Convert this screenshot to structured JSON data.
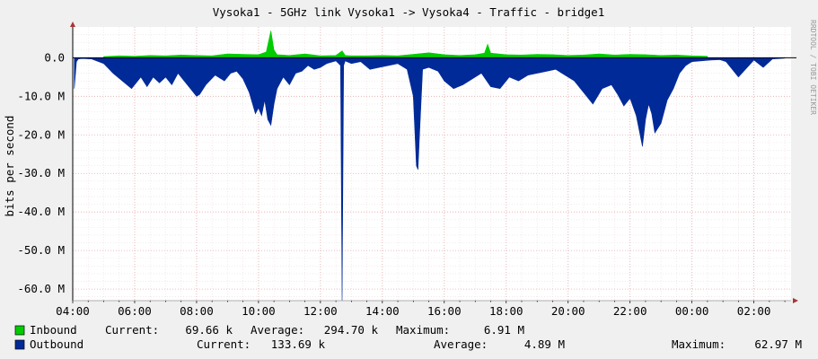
{
  "chart_data": {
    "type": "area",
    "title": "Vysoka1 - 5GHz link Vysoka1 -> Vysoka4 - Traffic - bridge1",
    "ylabel": "bits per second",
    "watermark": "RRDTOOL / TOBI OETIKER",
    "x_ticks": [
      "04:00",
      "06:00",
      "08:00",
      "10:00",
      "12:00",
      "14:00",
      "16:00",
      "18:00",
      "20:00",
      "22:00",
      "00:00",
      "02:00"
    ],
    "y_ticks": [
      "0.0",
      "-10.0 M",
      "-20.0 M",
      "-30.0 M",
      "-40.0 M",
      "-50.0 M",
      "-60.0 M"
    ],
    "ylim": [
      -63000000,
      8000000
    ],
    "xlim_hours": [
      4,
      27.2
    ],
    "grid": true,
    "series": [
      {
        "name": "Inbound",
        "color": "#00cc00",
        "x": [
          5.0,
          5.5,
          6.0,
          6.5,
          7.0,
          7.5,
          8.0,
          8.5,
          9.0,
          9.5,
          10.0,
          10.25,
          10.4,
          10.5,
          10.6,
          11.0,
          11.5,
          12.0,
          12.5,
          12.7,
          12.8,
          13.0,
          13.5,
          14.0,
          14.5,
          15.0,
          15.5,
          16.0,
          16.5,
          17.0,
          17.3,
          17.4,
          17.5,
          18.0,
          18.5,
          19.0,
          19.5,
          20.0,
          20.5,
          21.0,
          21.5,
          22.0,
          22.5,
          23.0,
          23.5,
          24.0,
          24.5
        ],
        "values": [
          300000,
          500000,
          400000,
          600000,
          500000,
          700000,
          600000,
          500000,
          1000000,
          900000,
          800000,
          1500000,
          7000000,
          2000000,
          800000,
          600000,
          1000000,
          500000,
          600000,
          1800000,
          600000,
          500000,
          500000,
          600000,
          500000,
          900000,
          1300000,
          800000,
          600000,
          800000,
          1200000,
          3500000,
          1200000,
          800000,
          700000,
          900000,
          800000,
          600000,
          700000,
          1000000,
          700000,
          900000,
          800000,
          600000,
          700000,
          500000,
          400000
        ]
      },
      {
        "name": "Outbound",
        "color": "#002a97",
        "x": [
          4.05,
          4.12,
          4.18,
          4.3,
          4.6,
          5.0,
          5.3,
          5.6,
          5.9,
          6.2,
          6.4,
          6.6,
          6.8,
          7.0,
          7.2,
          7.4,
          7.6,
          7.8,
          8.0,
          8.1,
          8.3,
          8.6,
          8.9,
          9.1,
          9.3,
          9.5,
          9.7,
          9.9,
          10.0,
          10.1,
          10.2,
          10.3,
          10.4,
          10.5,
          10.6,
          10.8,
          11.0,
          11.2,
          11.4,
          11.6,
          11.8,
          12.0,
          12.2,
          12.5,
          12.65,
          12.7,
          12.75,
          12.8,
          13.0,
          13.3,
          13.6,
          13.9,
          14.2,
          14.5,
          14.8,
          15.0,
          15.1,
          15.15,
          15.2,
          15.3,
          15.5,
          15.8,
          16.0,
          16.3,
          16.6,
          16.9,
          17.2,
          17.5,
          17.8,
          18.1,
          18.4,
          18.7,
          19.0,
          19.3,
          19.6,
          19.9,
          20.2,
          20.5,
          20.8,
          21.1,
          21.4,
          21.6,
          21.8,
          22.0,
          22.2,
          22.4,
          22.5,
          22.6,
          22.7,
          22.8,
          23.0,
          23.1,
          23.2,
          23.4,
          23.6,
          23.8,
          24.0,
          24.3,
          24.6,
          24.9,
          25.1,
          25.5,
          26.0,
          26.3,
          26.6,
          27.0
        ],
        "values": [
          -8000000,
          -1000000,
          -300000,
          -200000,
          -300000,
          -1500000,
          -4000000,
          -6000000,
          -8000000,
          -5000000,
          -7500000,
          -5000000,
          -6500000,
          -5000000,
          -7000000,
          -4000000,
          -6000000,
          -8000000,
          -10000000,
          -9500000,
          -7000000,
          -4500000,
          -6000000,
          -4000000,
          -3500000,
          -5500000,
          -9000000,
          -14500000,
          -13000000,
          -15000000,
          -11000000,
          -16000000,
          -17500000,
          -12000000,
          -8000000,
          -5000000,
          -7000000,
          -4000000,
          -3500000,
          -2000000,
          -3000000,
          -2500000,
          -1500000,
          -800000,
          -2000000,
          -63000000,
          -2000000,
          -800000,
          -1500000,
          -1000000,
          -3000000,
          -2500000,
          -2000000,
          -1500000,
          -3000000,
          -10000000,
          -28000000,
          -29000000,
          -20000000,
          -3000000,
          -2500000,
          -3500000,
          -6000000,
          -8000000,
          -7000000,
          -5500000,
          -4000000,
          -7500000,
          -8000000,
          -5000000,
          -6000000,
          -4500000,
          -4000000,
          -3500000,
          -3000000,
          -4500000,
          -6000000,
          -9000000,
          -12000000,
          -8000000,
          -7000000,
          -9500000,
          -12500000,
          -10500000,
          -15000000,
          -23000000,
          -16000000,
          -12000000,
          -14500000,
          -19500000,
          -17000000,
          -14000000,
          -11000000,
          -8000000,
          -4000000,
          -2000000,
          -1000000,
          -800000,
          -600000,
          -500000,
          -1000000,
          -5000000,
          -600000,
          -2500000,
          -300000,
          -100000
        ]
      }
    ],
    "legend": [
      {
        "name": "Inbound",
        "color": "#00cc00",
        "current_label": "Current:",
        "current": "69.66 k",
        "average_label": "Average:",
        "average": "294.70 k",
        "maximum_label": "Maximum:",
        "maximum": "6.91 M"
      },
      {
        "name": "Outbound",
        "color": "#002a97",
        "current_label": "Current:",
        "current": "133.69 k",
        "average_label": "Average:",
        "average": "4.89 M",
        "maximum_label": "Maximum:",
        "maximum": "62.97 M"
      }
    ]
  }
}
